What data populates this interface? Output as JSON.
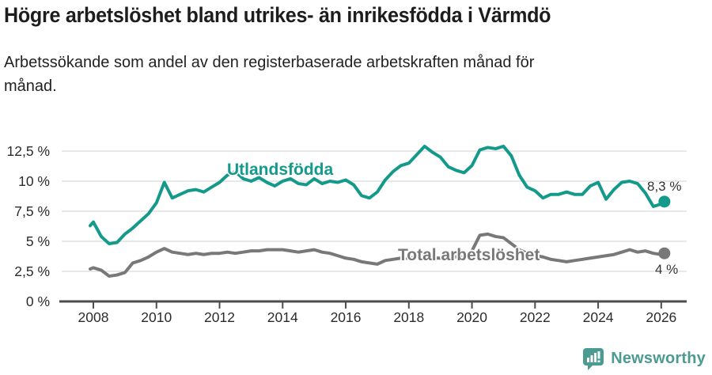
{
  "header": {
    "title": "Högre arbetslöshet bland utrikes- än inrikesfödda i Värmdö",
    "subtitle_lines": [
      "Arbetssökande som andel av den registerbaserade arbetskraften månad för",
      "månad."
    ]
  },
  "footer": {
    "brand": "Newsworthy",
    "brand_color": "#4b9b92"
  },
  "colors": {
    "foreign_born_line": "#149a8b",
    "total_line": "#787878",
    "grid": "#d9d9d9",
    "axis": "#4d4d4d",
    "tick_text": "#2b2b2b"
  },
  "chart_data": {
    "type": "line",
    "title": "Högre arbetslöshet bland utrikes- än inrikesfödda i Värmdö",
    "subtitle": "Arbetssökande som andel av den registerbaserade arbetskraften månad för månad.",
    "ylabel": "",
    "xlabel": "",
    "ylim": [
      0,
      13.5
    ],
    "grid": "horizontal",
    "legend_position": "inline-labels",
    "y_ticks": [
      {
        "value": 0,
        "label": "0 %"
      },
      {
        "value": 2.5,
        "label": "2,5 %"
      },
      {
        "value": 5,
        "label": "5 %"
      },
      {
        "value": 7.5,
        "label": "7,5 %"
      },
      {
        "value": 10,
        "label": "10 %"
      },
      {
        "value": 12.5,
        "label": "12,5 %"
      }
    ],
    "x_ticks": [
      {
        "value": 2008,
        "label": "2008"
      },
      {
        "value": 2010,
        "label": "2010"
      },
      {
        "value": 2012,
        "label": "2012"
      },
      {
        "value": 2014,
        "label": "2014"
      },
      {
        "value": 2016,
        "label": "2016"
      },
      {
        "value": 2018,
        "label": "2018"
      },
      {
        "value": 2020,
        "label": "2020"
      },
      {
        "value": 2022,
        "label": "2022"
      },
      {
        "value": 2024,
        "label": "2024"
      },
      {
        "value": 2026,
        "label": "2026"
      }
    ],
    "x": [
      2007.9,
      2008.0,
      2008.25,
      2008.5,
      2008.75,
      2009.0,
      2009.25,
      2009.5,
      2009.75,
      2010.0,
      2010.25,
      2010.5,
      2010.75,
      2011.0,
      2011.25,
      2011.5,
      2011.75,
      2012.0,
      2012.25,
      2012.5,
      2012.75,
      2013.0,
      2013.25,
      2013.5,
      2013.75,
      2014.0,
      2014.25,
      2014.5,
      2014.75,
      2015.0,
      2015.25,
      2015.5,
      2015.75,
      2016.0,
      2016.25,
      2016.5,
      2016.75,
      2017.0,
      2017.25,
      2017.5,
      2017.75,
      2018.0,
      2018.25,
      2018.5,
      2018.75,
      2019.0,
      2019.25,
      2019.5,
      2019.75,
      2020.0,
      2020.25,
      2020.5,
      2020.75,
      2021.0,
      2021.25,
      2021.5,
      2021.75,
      2022.0,
      2022.25,
      2022.5,
      2022.75,
      2023.0,
      2023.25,
      2023.5,
      2023.75,
      2024.0,
      2024.25,
      2024.5,
      2024.75,
      2025.0,
      2025.25,
      2025.5,
      2025.75,
      2026.0,
      2026.1
    ],
    "series": [
      {
        "name": "Utlandsfödda",
        "color": "#149a8b",
        "end_label": "8,3 %",
        "end_value": 8.3,
        "values": [
          6.3,
          6.6,
          5.4,
          4.8,
          4.9,
          5.6,
          6.1,
          6.7,
          7.3,
          8.2,
          9.9,
          8.6,
          8.9,
          9.2,
          9.3,
          9.1,
          9.5,
          9.9,
          10.5,
          10.8,
          10.2,
          10.0,
          10.3,
          9.9,
          9.6,
          10.0,
          10.2,
          9.8,
          9.7,
          10.2,
          9.8,
          10.0,
          9.9,
          10.1,
          9.7,
          8.8,
          8.6,
          9.1,
          10.1,
          10.8,
          11.3,
          11.5,
          12.2,
          12.9,
          12.4,
          12.0,
          11.2,
          10.9,
          10.7,
          11.3,
          12.6,
          12.8,
          12.7,
          12.9,
          12.1,
          10.5,
          9.5,
          9.2,
          8.6,
          8.9,
          8.9,
          9.1,
          8.9,
          8.9,
          9.6,
          9.9,
          8.5,
          9.3,
          9.9,
          10.0,
          9.8,
          9.0,
          7.9,
          8.1,
          8.3
        ]
      },
      {
        "name": "Total arbetslöshet",
        "color": "#787878",
        "end_label": "4 %",
        "end_value": 4.0,
        "values": [
          2.7,
          2.8,
          2.6,
          2.1,
          2.2,
          2.4,
          3.2,
          3.4,
          3.7,
          4.1,
          4.4,
          4.1,
          4.0,
          3.9,
          4.0,
          3.9,
          4.0,
          4.0,
          4.1,
          4.0,
          4.1,
          4.2,
          4.2,
          4.3,
          4.3,
          4.3,
          4.2,
          4.1,
          4.2,
          4.3,
          4.1,
          4.0,
          3.8,
          3.6,
          3.5,
          3.3,
          3.2,
          3.1,
          3.4,
          3.5,
          3.6,
          3.6,
          3.7,
          3.7,
          3.6,
          3.6,
          3.7,
          3.7,
          3.8,
          4.2,
          5.5,
          5.6,
          5.4,
          5.3,
          4.8,
          4.3,
          4.0,
          3.8,
          3.7,
          3.5,
          3.4,
          3.3,
          3.4,
          3.5,
          3.6,
          3.7,
          3.8,
          3.9,
          4.1,
          4.3,
          4.1,
          4.2,
          4.0,
          3.9,
          4.0
        ]
      }
    ]
  }
}
